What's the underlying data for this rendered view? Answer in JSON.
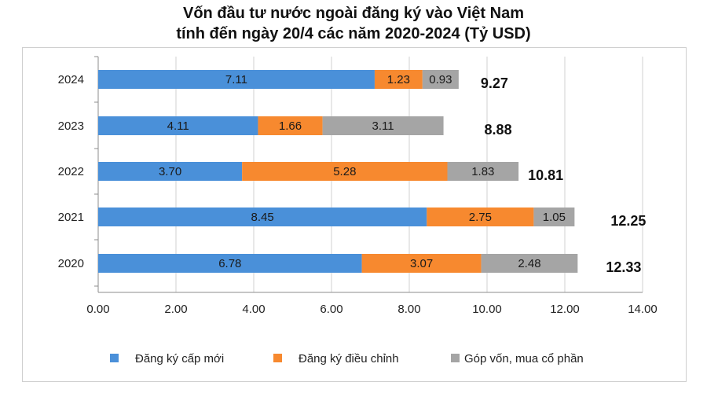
{
  "chart_data": {
    "type": "bar",
    "orientation": "horizontal",
    "stacked": true,
    "title_line1": "Vốn đầu tư nước ngoài đăng ký vào Việt Nam",
    "title_line2": "tính đến ngày 20/4 các năm 2020-2024 (Tỷ USD)",
    "categories": [
      "2024",
      "2023",
      "2022",
      "2021",
      "2020"
    ],
    "series": [
      {
        "name": "Đăng ký cấp mới",
        "color": "#4a90d9",
        "values": [
          7.11,
          4.11,
          3.7,
          8.45,
          6.78
        ],
        "labels": [
          "7.11",
          "4.11",
          "3.70",
          "8.45",
          "6.78"
        ]
      },
      {
        "name": "Đăng ký điều chỉnh",
        "color": "#f7892f",
        "values": [
          1.23,
          1.66,
          5.28,
          2.75,
          3.07
        ],
        "labels": [
          "1.23",
          "1.66",
          "5.28",
          "2.75",
          "3.07"
        ]
      },
      {
        "name": "Góp vốn, mua cổ phần",
        "color": "#a5a5a5",
        "values": [
          0.93,
          3.11,
          1.83,
          1.05,
          2.48
        ],
        "labels": [
          "0.93",
          "3.11",
          "1.83",
          "1.05",
          "2.48"
        ]
      }
    ],
    "totals": [
      9.27,
      8.88,
      10.81,
      12.25,
      12.33
    ],
    "total_labels": [
      "9.27",
      "8.88",
      "10.81",
      "12.25",
      "12.33"
    ],
    "xlim": [
      0,
      14
    ],
    "x_ticks": [
      "0.00",
      "2.00",
      "4.00",
      "6.00",
      "8.00",
      "10.00",
      "12.00",
      "14.00"
    ],
    "grid": true,
    "legend_position": "bottom"
  }
}
